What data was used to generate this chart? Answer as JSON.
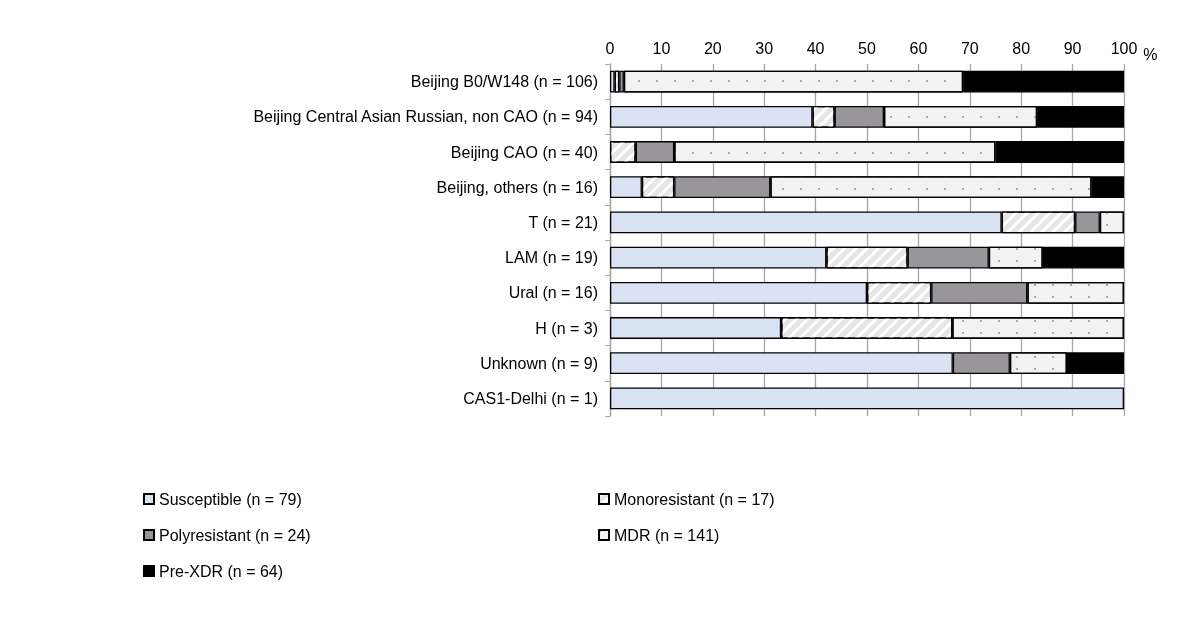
{
  "chart_data": {
    "type": "bar",
    "orientation": "horizontal",
    "stacked": true,
    "xlabel": "%",
    "categories": [
      "Beijing B0/W148 (n = 106)",
      "Beijing Central Asian Russian, non CAO (n = 94)",
      "Beijing CAO (n = 40)",
      "Beijing, others (n = 16)",
      "T (n = 21)",
      "LAM (n = 19)",
      "Ural (n = 16)",
      "H (n = 3)",
      "Unknown (n = 9)",
      "CAS1-Delhi (n = 1)"
    ],
    "series": [
      {
        "name": "Susceptible (n = 79)",
        "color": "#dae3f3",
        "values": [
          0.9,
          39.4,
          0,
          6.2,
          76.2,
          42.1,
          50,
          33.3,
          66.7,
          100
        ]
      },
      {
        "name": "Monoresistant (n = 17)",
        "color": "#e6e6e6",
        "values": [
          0.9,
          4.3,
          5,
          6.3,
          14.3,
          15.8,
          12.5,
          33.3,
          0,
          0
        ]
      },
      {
        "name": "Polyresistant (n = 24)",
        "color": "#98969b",
        "values": [
          0.9,
          9.6,
          7.5,
          18.7,
          4.8,
          15.8,
          18.7,
          0,
          11.1,
          0
        ]
      },
      {
        "name": "MDR (n = 141)",
        "color": "#f2f2f2",
        "values": [
          66.0,
          29.8,
          62.5,
          62.5,
          4.7,
          10.5,
          18.8,
          33.4,
          11.1,
          0
        ]
      },
      {
        "name": "Pre-XDR (n = 64)",
        "color": "#000000",
        "values": [
          31.3,
          16.9,
          25,
          6.3,
          0,
          15.8,
          0,
          0,
          11.1,
          0
        ]
      }
    ],
    "xlim": [
      0,
      100
    ],
    "xticks": [
      0,
      10,
      20,
      30,
      40,
      50,
      60,
      70,
      80,
      90,
      100
    ],
    "grid": "x",
    "legend": "bottom"
  }
}
